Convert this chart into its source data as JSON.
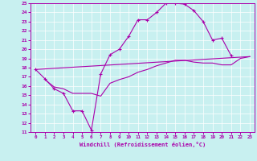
{
  "xlabel": "Windchill (Refroidissement éolien,°C)",
  "bg_color": "#c8f0f0",
  "line_color": "#aa00aa",
  "xlim": [
    -0.5,
    23.5
  ],
  "ylim": [
    11,
    25
  ],
  "xticks": [
    0,
    1,
    2,
    3,
    4,
    5,
    6,
    7,
    8,
    9,
    10,
    11,
    12,
    13,
    14,
    15,
    16,
    17,
    18,
    19,
    20,
    21,
    22,
    23
  ],
  "yticks": [
    11,
    12,
    13,
    14,
    15,
    16,
    17,
    18,
    19,
    20,
    21,
    22,
    23,
    24,
    25
  ],
  "line1_x": [
    0,
    1,
    2,
    3,
    4,
    5,
    6,
    7,
    8,
    9,
    10,
    11,
    12,
    13,
    14,
    15,
    16,
    17,
    18,
    19,
    20,
    21,
    22,
    23
  ],
  "line1_y": [
    17.8,
    16.8,
    15.7,
    15.2,
    13.3,
    13.3,
    11.2,
    17.3,
    19.4,
    20.0,
    21.4,
    23.2,
    23.2,
    24.0,
    25.0,
    25.0,
    24.9,
    24.2,
    23.0,
    21.0,
    21.2,
    19.3,
    null,
    null
  ],
  "line2_x": [
    0,
    23
  ],
  "line2_y": [
    17.8,
    19.2
  ],
  "line3_x": [
    1,
    2,
    3,
    4,
    5,
    6,
    7,
    8,
    9,
    10,
    11,
    12,
    13,
    14,
    15,
    16,
    17,
    18,
    19,
    20,
    21,
    22,
    23
  ],
  "line3_y": [
    16.7,
    15.9,
    15.7,
    15.2,
    15.2,
    15.2,
    14.9,
    16.3,
    16.7,
    17.0,
    17.5,
    17.8,
    18.2,
    18.5,
    18.8,
    18.8,
    18.6,
    18.5,
    18.5,
    18.3,
    18.3,
    19.0,
    19.2
  ]
}
